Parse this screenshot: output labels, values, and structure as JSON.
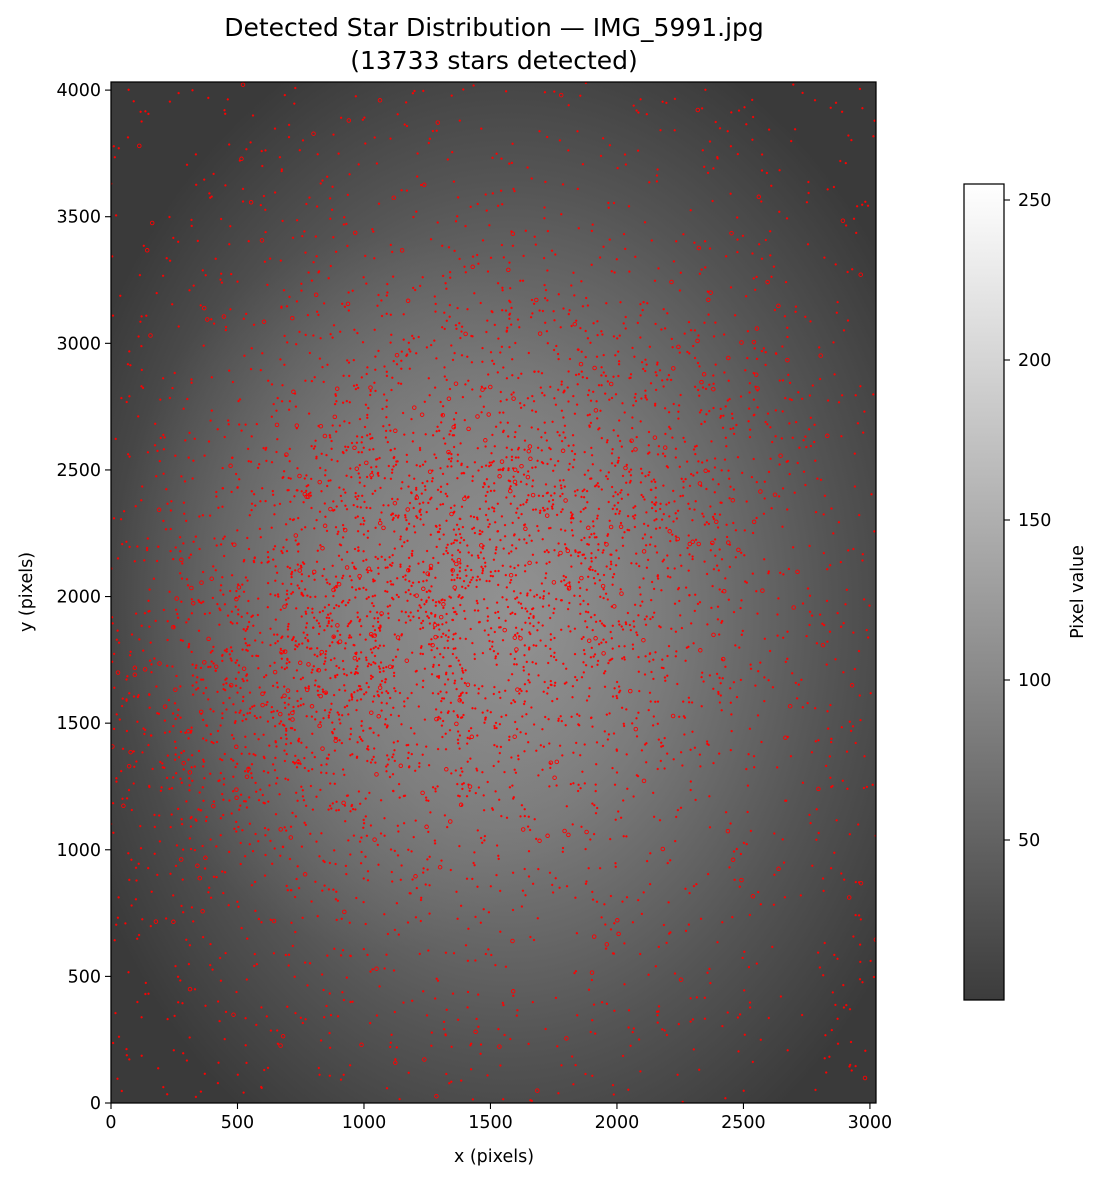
{
  "chart_data": {
    "type": "scatter",
    "title": "Detected Star Distribution — IMG_5991.jpg",
    "subtitle": "(13733 stars detected)",
    "xlabel": "x (pixels)",
    "ylabel": "y (pixels)",
    "xlim": [
      0,
      3024
    ],
    "ylim": [
      0,
      4032
    ],
    "x_ticks": [
      0,
      500,
      1000,
      1500,
      2000,
      2500,
      3000
    ],
    "y_ticks": [
      0,
      500,
      1000,
      1500,
      2000,
      2500,
      3000,
      3500,
      4000
    ],
    "x_tick_labels": [
      "0",
      "500",
      "1000",
      "1500",
      "2000",
      "2500",
      "3000"
    ],
    "y_tick_labels": [
      "0",
      "500",
      "1000",
      "1500",
      "2000",
      "2500",
      "3000",
      "3500",
      "4000"
    ],
    "grid": false,
    "background": "grayscale image of night sky, brighter in center",
    "point_color": "#ff0000",
    "total_points": 13733,
    "point_density_description": "dense central band, sparse corners",
    "density_clusters": [
      {
        "x": 1400,
        "y": 2200,
        "weight": 1.0
      },
      {
        "x": 850,
        "y": 1950,
        "weight": 1.0
      },
      {
        "x": 1600,
        "y": 2250,
        "weight": 0.9
      },
      {
        "x": 2100,
        "y": 2400,
        "weight": 0.8
      },
      {
        "x": 700,
        "y": 1750,
        "weight": 0.9
      },
      {
        "x": 1200,
        "y": 1700,
        "weight": 0.7
      },
      {
        "x": 350,
        "y": 1500,
        "weight": 0.6
      },
      {
        "x": 1800,
        "y": 2900,
        "weight": 0.6
      },
      {
        "x": 2000,
        "y": 1800,
        "weight": 0.5
      },
      {
        "x": 500,
        "y": 1200,
        "weight": 0.5
      },
      {
        "x": 1000,
        "y": 2600,
        "weight": 0.5
      },
      {
        "x": 2300,
        "y": 2600,
        "weight": 0.5
      }
    ],
    "colorbar": {
      "label": "Pixel value",
      "range": [
        0,
        255
      ],
      "ticks": [
        50,
        100,
        150,
        200,
        250
      ],
      "tick_labels": [
        "50",
        "100",
        "150",
        "200",
        "250"
      ],
      "colormap": "gray",
      "low_color": "#3c3c3c",
      "high_color": "#ffffff"
    },
    "colors": {
      "axes_edge": "#000000",
      "image_dark": "#3b3b3b",
      "image_bright": "#9a9a9a"
    }
  }
}
